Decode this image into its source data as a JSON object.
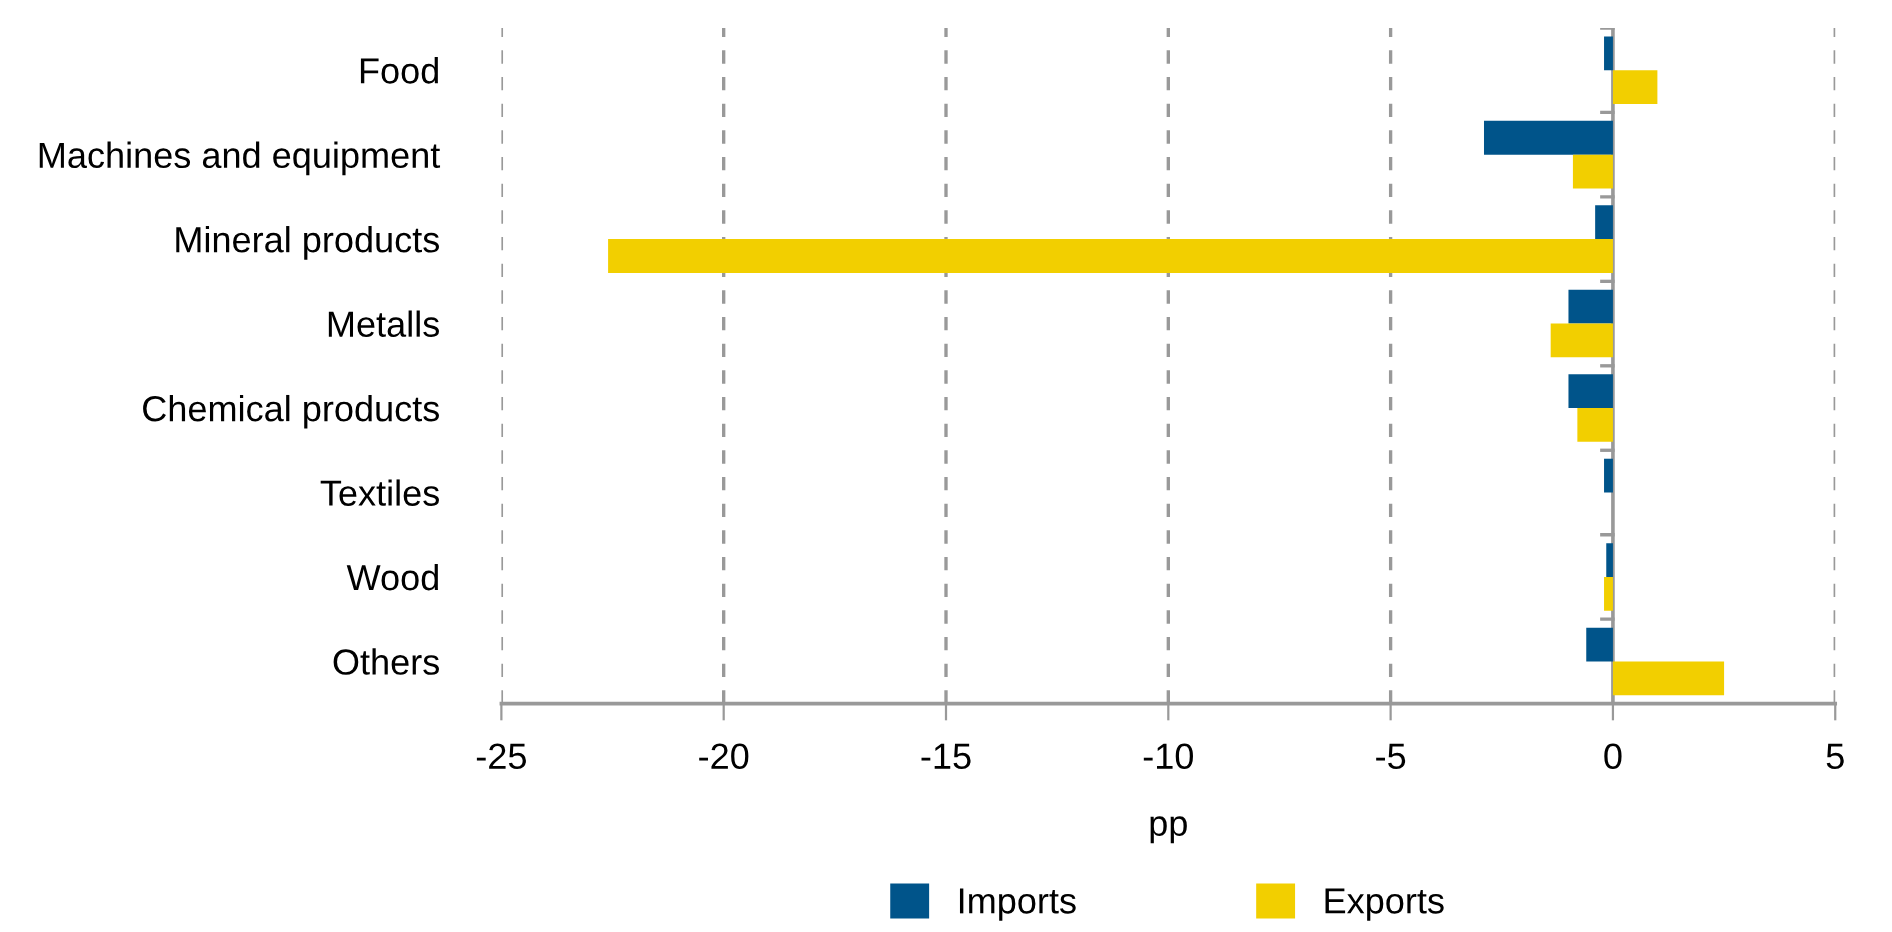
{
  "chart_data": {
    "type": "bar",
    "orientation": "horizontal",
    "xlabel": "pp",
    "categories": [
      "Food",
      "Machines and equipment",
      "Mineral products",
      "Metalls",
      "Chemical products",
      "Textiles",
      "Wood",
      "Others"
    ],
    "series": [
      {
        "name": "Imports",
        "color": "#00548a",
        "values": [
          -0.2,
          -2.9,
          -0.4,
          -1.0,
          -1.0,
          -0.2,
          -0.15,
          -0.6
        ]
      },
      {
        "name": "Exports",
        "color": "#f2cf00",
        "values": [
          1.0,
          -0.9,
          -22.6,
          -1.4,
          -0.8,
          null,
          -0.2,
          2.5
        ]
      }
    ],
    "xlim": [
      -25,
      5
    ],
    "xticks": [
      -25,
      -20,
      -15,
      -10,
      -5,
      0,
      5
    ],
    "grid": "x",
    "legend": "bottom"
  }
}
